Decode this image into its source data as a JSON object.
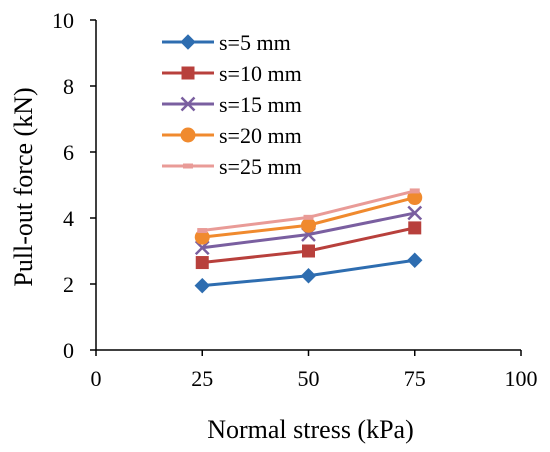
{
  "chart_data": {
    "type": "line",
    "title": "",
    "xlabel": "Normal stress (kPa)",
    "ylabel": "Pull-out force (kN)",
    "xlim": [
      0,
      100
    ],
    "ylim": [
      0,
      10
    ],
    "xticks": [
      0,
      25,
      50,
      75,
      100
    ],
    "yticks": [
      0,
      2,
      4,
      6,
      8,
      10
    ],
    "grid": false,
    "legend_position": "top-center",
    "x": [
      25,
      50,
      75
    ],
    "series": [
      {
        "name": "s=5 mm",
        "values": [
          1.95,
          2.25,
          2.72
        ],
        "color": "#2E6DB0",
        "marker": "diamond"
      },
      {
        "name": "s=10 mm",
        "values": [
          2.65,
          3.0,
          3.7
        ],
        "color": "#B8403C",
        "marker": "square"
      },
      {
        "name": "s=15 mm",
        "values": [
          3.1,
          3.5,
          4.15
        ],
        "color": "#7A5FA0",
        "marker": "x"
      },
      {
        "name": "s=20 mm",
        "values": [
          3.42,
          3.78,
          4.62
        ],
        "color": "#F08A2E",
        "marker": "circle"
      },
      {
        "name": "s=25 mm",
        "values": [
          3.62,
          4.02,
          4.82
        ],
        "color": "#E99B97",
        "marker": "dash"
      }
    ]
  }
}
